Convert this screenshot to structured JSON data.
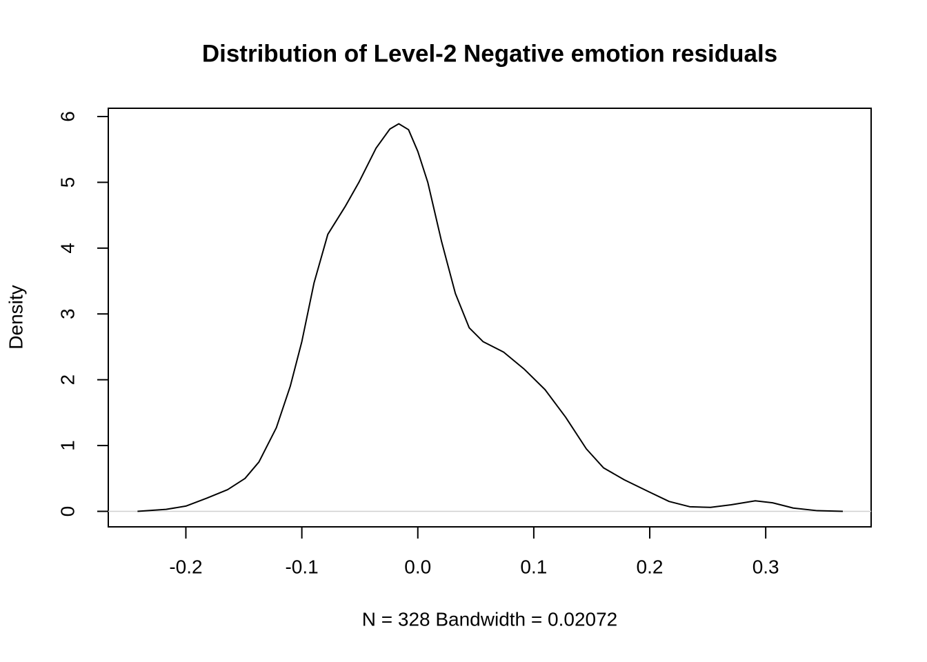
{
  "chart_data": {
    "type": "line",
    "title": "Distribution of Level-2 Negative emotion residuals",
    "xlabel": "N = 328   Bandwidth = 0.02072",
    "ylabel": "Density",
    "color": "#000000",
    "zero_line": true,
    "x": [
      -0.2417,
      -0.217,
      -0.2,
      -0.182,
      -0.164,
      -0.149,
      -0.137,
      -0.122,
      -0.11,
      -0.1,
      -0.0895,
      -0.0776,
      -0.0627,
      -0.0508,
      -0.036,
      -0.0241,
      -0.0164,
      -0.008,
      0.0,
      0.0086,
      0.0205,
      0.0324,
      0.0443,
      0.0562,
      0.074,
      0.0918,
      0.1097,
      0.1275,
      0.1453,
      0.1602,
      0.178,
      0.1989,
      0.2167,
      0.2345,
      0.2524,
      0.2702,
      0.291,
      0.3059,
      0.3237,
      0.3445,
      0.3665
    ],
    "values": [
      0,
      0.03,
      0.08,
      0.2,
      0.33,
      0.5,
      0.75,
      1.27,
      1.9,
      2.58,
      3.47,
      4.21,
      4.63,
      5.0,
      5.52,
      5.81,
      5.89,
      5.8,
      5.47,
      5.0,
      4.1,
      3.31,
      2.79,
      2.58,
      2.42,
      2.16,
      1.85,
      1.43,
      0.95,
      0.66,
      0.48,
      0.3,
      0.15,
      0.07,
      0.06,
      0.1,
      0.16,
      0.13,
      0.05,
      0.01,
      0
    ],
    "xlim": [
      -0.2669,
      0.3909
    ],
    "ylim": [
      -0.2356,
      6.1256
    ],
    "xticks": [
      -0.2,
      -0.1,
      {
        "value": 0,
        "label": "0.0"
      },
      0.1,
      0.2,
      0.3
    ],
    "yticks": [
      0,
      1,
      2,
      3,
      4,
      5,
      6
    ]
  }
}
